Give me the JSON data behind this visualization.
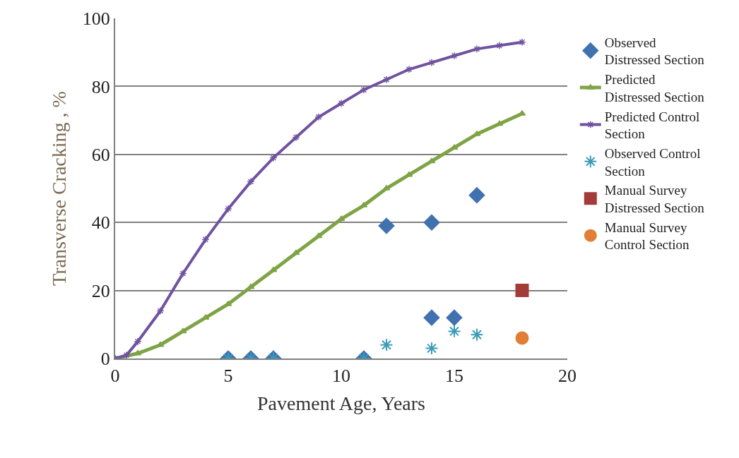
{
  "chart_data": {
    "type": "scatter",
    "xlabel": "Pavement Age, Years",
    "ylabel": "Transverse Cracking , %",
    "xlim": [
      0,
      20
    ],
    "xticks": [
      0,
      5,
      10,
      15,
      20
    ],
    "ylim": [
      0,
      100
    ],
    "yticks": [
      0,
      20,
      40,
      60,
      80,
      100
    ],
    "grid": "y",
    "legend": "right",
    "series": [
      {
        "name": "Observed Distressed Section",
        "marker": "diamond",
        "color": "#4072b0",
        "x": [
          5,
          6,
          7,
          11,
          12,
          14,
          14,
          15,
          16
        ],
        "values": [
          0,
          0,
          0,
          0,
          39,
          40,
          12,
          12,
          48
        ]
      },
      {
        "name": "Predicted Distressed Section",
        "type": "line",
        "marker": "triangle",
        "color": "#7ea445",
        "x": [
          0,
          1,
          2,
          3,
          4,
          5,
          6,
          7,
          8,
          9,
          10,
          11,
          12,
          13,
          14,
          15,
          16,
          17,
          18
        ],
        "values": [
          0,
          1.5,
          4,
          8,
          12,
          16,
          21,
          26,
          31,
          36,
          41,
          45,
          50,
          54,
          58,
          62,
          66,
          69,
          72
        ]
      },
      {
        "name": "Predicted Control Section",
        "type": "line",
        "marker": "cross",
        "color": "#7052a0",
        "x": [
          0,
          0.5,
          1,
          2,
          3,
          4,
          5,
          6,
          7,
          8,
          9,
          10,
          11,
          12,
          13,
          14,
          15,
          16,
          17,
          18
        ],
        "values": [
          0,
          1,
          5,
          14,
          25,
          35,
          44,
          52,
          59,
          65,
          71,
          75,
          79,
          82,
          85,
          87,
          89,
          91,
          92,
          93
        ]
      },
      {
        "name": "Observed Control Section",
        "marker": "cross",
        "color": "#3a9ab8",
        "x": [
          5,
          6,
          7,
          11,
          12,
          14,
          15,
          16
        ],
        "values": [
          0,
          0,
          0,
          0,
          4,
          3,
          8,
          7
        ]
      },
      {
        "name": "Manual Survey Distressed Section",
        "marker": "square",
        "color": "#a33c38",
        "x": [
          18
        ],
        "values": [
          20
        ]
      },
      {
        "name": "Manual Survey Control Section",
        "marker": "circle",
        "color": "#e07f35",
        "x": [
          18
        ],
        "values": [
          6
        ]
      }
    ]
  }
}
